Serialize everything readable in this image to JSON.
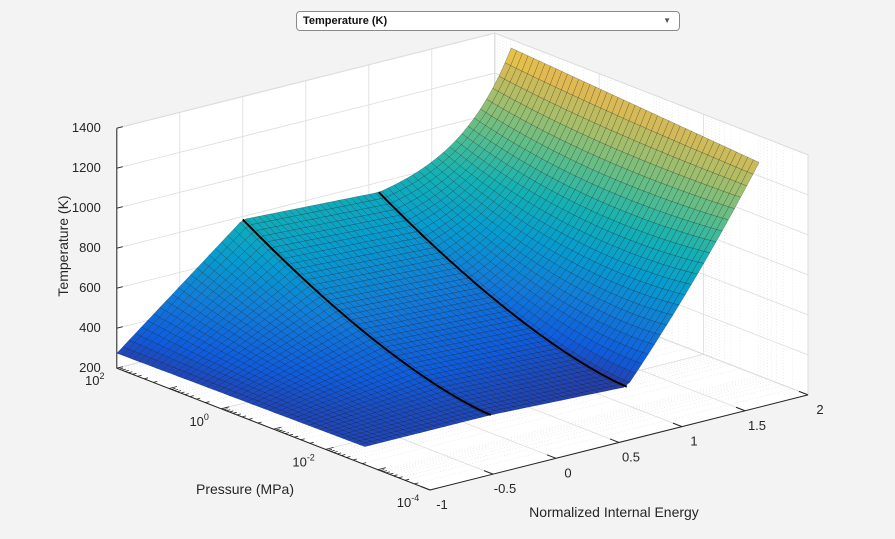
{
  "dropdown": {
    "selected": "Temperature (K)",
    "chevron": "▼"
  },
  "chart_data": {
    "type": "surface",
    "title": "",
    "xlabel": "Normalized Internal Energy",
    "ylabel": "Pressure (MPa)",
    "zlabel": "Temperature (K)",
    "xlim": [
      -1,
      2
    ],
    "ylim_log10": [
      -4,
      2
    ],
    "zlim": [
      200,
      1400
    ],
    "x_ticks": [
      "-1",
      "-0.5",
      "0",
      "0.5",
      "1",
      "1.5",
      "2"
    ],
    "x_tick_values": [
      -1,
      -0.5,
      0,
      0.5,
      1,
      1.5,
      2
    ],
    "y_ticks": [
      {
        "base": "10",
        "exp": "2",
        "value": 2
      },
      {
        "base": "10",
        "exp": "0",
        "value": 0
      },
      {
        "base": "10",
        "exp": "-2",
        "value": -2
      },
      {
        "base": "10",
        "exp": "-4",
        "value": -4
      }
    ],
    "z_ticks": [
      "200",
      "400",
      "600",
      "800",
      "1000",
      "1200",
      "1400"
    ],
    "z_tick_values": [
      200,
      400,
      600,
      800,
      1000,
      1200,
      1400
    ],
    "grid": true,
    "colormap": "parula",
    "color_range": [
      200,
      1400
    ],
    "surface": {
      "energy_range": [
        -1,
        2.13
      ],
      "log10_pressure_range": [
        -2.75,
        2
      ],
      "phase_boundaries_energy": [
        0,
        1.08
      ],
      "profile_high_pressure": {
        "log10_pressure": 2,
        "energy": [
          -1,
          0,
          1.08,
          2.13
        ],
        "temperature": [
          275,
          785,
          750,
          1305
        ]
      },
      "profile_low_pressure": {
        "log10_pressure": -2.75,
        "energy": [
          -1,
          0,
          1.08,
          2.13
        ],
        "temperature": [
          290,
          290,
          260,
          1215
        ]
      }
    }
  }
}
